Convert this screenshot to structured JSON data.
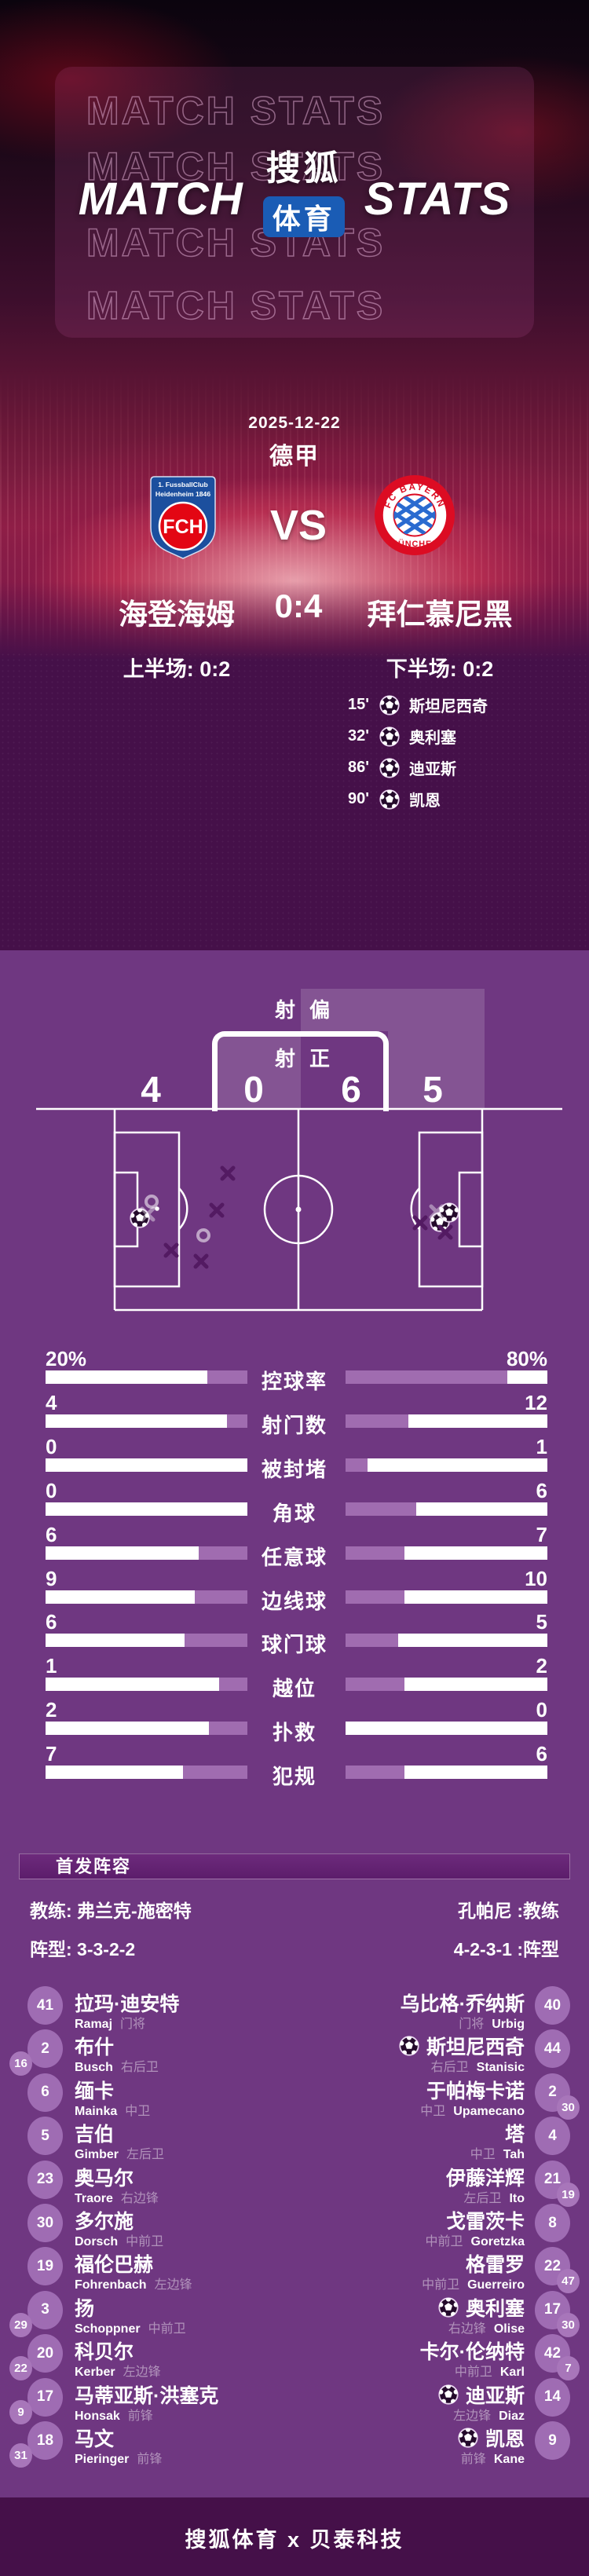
{
  "header": {
    "watermark": "MATCH STATS",
    "title_left": "MATCH",
    "title_right": "STATS",
    "logo_line1": "搜狐",
    "logo_line2": "体育"
  },
  "match": {
    "date": "2025-12-22",
    "league": "德甲",
    "vs": "VS",
    "score": "0:4",
    "home": {
      "name": "海登海姆",
      "crest_line1": "1. FussballClub",
      "crest_line2": "Heidenheim 1846",
      "crest_abbr": "FCH"
    },
    "away": {
      "name": "拜仁慕尼黑",
      "crest_top": "FC BAYERN",
      "crest_bottom": "MÜNCHEN"
    },
    "first_half_label": "上半场: 0:2",
    "second_half_label": "下半场: 0:2",
    "goals": [
      {
        "minute": "15'",
        "player": "斯坦尼西奇"
      },
      {
        "minute": "32'",
        "player": "奥利塞"
      },
      {
        "minute": "86'",
        "player": "迪亚斯"
      },
      {
        "minute": "90'",
        "player": "凯恩"
      }
    ]
  },
  "shots": {
    "off_label": "射偏",
    "on_label": "射正",
    "home_off": "4",
    "home_on": "0",
    "away_on": "6",
    "away_off": "5"
  },
  "stats": [
    {
      "label": "控球率",
      "home": "20%",
      "away": "80%",
      "hf": 20,
      "af": 80
    },
    {
      "label": "射门数",
      "home": "4",
      "away": "12",
      "hf": 10,
      "af": 31
    },
    {
      "label": "被封堵",
      "home": "0",
      "away": "1",
      "hf": 0,
      "af": 11
    },
    {
      "label": "角球",
      "home": "0",
      "away": "6",
      "hf": 0,
      "af": 35
    },
    {
      "label": "任意球",
      "home": "6",
      "away": "7",
      "hf": 24,
      "af": 29
    },
    {
      "label": "边线球",
      "home": "9",
      "away": "10",
      "hf": 26,
      "af": 29
    },
    {
      "label": "球门球",
      "home": "6",
      "away": "5",
      "hf": 31,
      "af": 26
    },
    {
      "label": "越位",
      "home": "1",
      "away": "2",
      "hf": 14,
      "af": 29
    },
    {
      "label": "扑救",
      "home": "2",
      "away": "0",
      "hf": 19,
      "af": 0
    },
    {
      "label": "犯规",
      "home": "7",
      "away": "6",
      "hf": 32,
      "af": 29
    }
  ],
  "lineup": {
    "section_title": "首发阵容",
    "home_coach_label": "教练: 弗兰克-施密特",
    "away_coach_label": "孔帕尼 :教练",
    "home_formation_label": "阵型: 3-3-2-2",
    "away_formation_label": "4-2-3-1 :阵型",
    "home_players": [
      {
        "num": "41",
        "sub": "",
        "name": "拉玛·迪安特",
        "latin": "Ramaj",
        "pos": "门将",
        "goal": false
      },
      {
        "num": "2",
        "sub": "16",
        "name": "布什",
        "latin": "Busch",
        "pos": "右后卫",
        "goal": false
      },
      {
        "num": "6",
        "sub": "",
        "name": "缅卡",
        "latin": "Mainka",
        "pos": "中卫",
        "goal": false
      },
      {
        "num": "5",
        "sub": "",
        "name": "吉伯",
        "latin": "Gimber",
        "pos": "左后卫",
        "goal": false
      },
      {
        "num": "23",
        "sub": "",
        "name": "奥马尔",
        "latin": "Traore",
        "pos": "右边锋",
        "goal": false
      },
      {
        "num": "30",
        "sub": "",
        "name": "多尔施",
        "latin": "Dorsch",
        "pos": "中前卫",
        "goal": false
      },
      {
        "num": "19",
        "sub": "",
        "name": "福伦巴赫",
        "latin": "Fohrenbach",
        "pos": "左边锋",
        "goal": false
      },
      {
        "num": "3",
        "sub": "29",
        "name": "扬",
        "latin": "Schoppner",
        "pos": "中前卫",
        "goal": false
      },
      {
        "num": "20",
        "sub": "22",
        "name": "科贝尔",
        "latin": "Kerber",
        "pos": "左边锋",
        "goal": false
      },
      {
        "num": "17",
        "sub": "9",
        "name": "马蒂亚斯·洪塞克",
        "latin": "Honsak",
        "pos": "前锋",
        "goal": false
      },
      {
        "num": "18",
        "sub": "31",
        "name": "马文",
        "latin": "Pieringer",
        "pos": "前锋",
        "goal": false
      }
    ],
    "away_players": [
      {
        "num": "40",
        "sub": "",
        "name": "乌比格·乔纳斯",
        "latin": "Urbig",
        "pos": "门将",
        "goal": false
      },
      {
        "num": "44",
        "sub": "",
        "name": "斯坦尼西奇",
        "latin": "Stanisic",
        "pos": "右后卫",
        "goal": true
      },
      {
        "num": "2",
        "sub": "30",
        "name": "于帕梅卡诺",
        "latin": "Upamecano",
        "pos": "中卫",
        "goal": false
      },
      {
        "num": "4",
        "sub": "",
        "name": "塔",
        "latin": "Tah",
        "pos": "中卫",
        "goal": false
      },
      {
        "num": "21",
        "sub": "19",
        "name": "伊藤洋辉",
        "latin": "Ito",
        "pos": "左后卫",
        "goal": false
      },
      {
        "num": "8",
        "sub": "",
        "name": "戈雷茨卡",
        "latin": "Goretzka",
        "pos": "中前卫",
        "goal": false
      },
      {
        "num": "22",
        "sub": "47",
        "name": "格雷罗",
        "latin": "Guerreiro",
        "pos": "中前卫",
        "goal": false
      },
      {
        "num": "17",
        "sub": "30",
        "name": "奥利塞",
        "latin": "Olise",
        "pos": "右边锋",
        "goal": true
      },
      {
        "num": "42",
        "sub": "7",
        "name": "卡尔·伦纳特",
        "latin": "Karl",
        "pos": "中前卫",
        "goal": false
      },
      {
        "num": "14",
        "sub": "",
        "name": "迪亚斯",
        "latin": "Diaz",
        "pos": "左边锋",
        "goal": true
      },
      {
        "num": "9",
        "sub": "",
        "name": "凯恩",
        "latin": "Kane",
        "pos": "前锋",
        "goal": true
      }
    ]
  },
  "footer": {
    "text": "搜狐体育 x 贝泰科技"
  },
  "shot_map": {
    "markers": [
      {
        "t": "ball",
        "x": 138,
        "y": 141
      },
      {
        "t": "ring",
        "x": 153,
        "y": 120
      },
      {
        "t": "ring",
        "x": 219,
        "y": 163
      },
      {
        "t": "x",
        "x": 250,
        "y": 84,
        "v": "dark"
      },
      {
        "t": "x",
        "x": 236,
        "y": 131,
        "v": "dark"
      },
      {
        "t": "x",
        "x": 178,
        "y": 182,
        "v": "dark"
      },
      {
        "t": "x",
        "x": 216,
        "y": 196,
        "v": "dark"
      },
      {
        "t": "x",
        "x": 148,
        "y": 136,
        "v": "light"
      },
      {
        "t": "ball",
        "x": 520,
        "y": 146
      },
      {
        "t": "ball",
        "x": 532,
        "y": 134
      },
      {
        "t": "x",
        "x": 495,
        "y": 147,
        "v": "dark"
      },
      {
        "t": "x",
        "x": 527,
        "y": 159,
        "v": "dark"
      },
      {
        "t": "x",
        "x": 516,
        "y": 133,
        "v": "light"
      }
    ]
  },
  "chart_data": {
    "type": "bar",
    "title": "MATCH STATS 海登海姆 0:4 拜仁慕尼黑",
    "categories": [
      "控球率",
      "射门数",
      "被封堵",
      "角球",
      "任意球",
      "边线球",
      "球门球",
      "越位",
      "扑救",
      "犯规"
    ],
    "series": [
      {
        "name": "海登海姆",
        "values": [
          20,
          4,
          0,
          0,
          6,
          9,
          6,
          1,
          2,
          7
        ]
      },
      {
        "name": "拜仁慕尼黑",
        "values": [
          80,
          12,
          1,
          6,
          7,
          10,
          5,
          2,
          0,
          6
        ]
      }
    ],
    "first_row_unit": "%",
    "legend_position": "values at outer ends, labels centered",
    "shot_summary": {
      "home_on_target": 0,
      "home_off_target": 4,
      "away_on_target": 6,
      "away_off_target": 5
    },
    "goal_events": [
      {
        "minute": 15,
        "player": "斯坦尼西奇",
        "team": "拜仁慕尼黑"
      },
      {
        "minute": 32,
        "player": "奥利塞",
        "team": "拜仁慕尼黑"
      },
      {
        "minute": 86,
        "player": "迪亚斯",
        "team": "拜仁慕尼黑"
      },
      {
        "minute": 90,
        "player": "凯恩",
        "team": "拜仁慕尼黑"
      }
    ],
    "half_scores": {
      "first": "0:2",
      "second": "0:2"
    }
  }
}
